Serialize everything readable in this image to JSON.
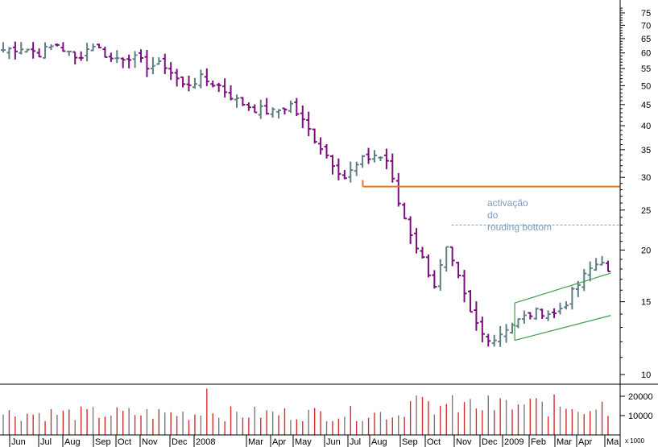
{
  "chart_data": {
    "type": "ohlc",
    "price_scale": "log",
    "y_ticks": [
      10,
      15,
      20,
      25,
      30,
      35,
      40,
      45,
      50,
      55,
      60,
      65,
      70,
      75
    ],
    "ylim": [
      9.5,
      78
    ],
    "volume_ticks": [
      {
        "value": 10000,
        "label": "10000"
      },
      {
        "value": 20000,
        "label": "20000"
      }
    ],
    "volume_unit_label": "x 1000",
    "x_labels": [
      "Jun",
      "Jul",
      "Aug",
      "Sep",
      "Oct",
      "Nov",
      "Dec",
      "2008",
      "Mar",
      "Apr",
      "May",
      "Jun",
      "Jul",
      "Aug",
      "Sep",
      "Oct",
      "Nov",
      "Dec",
      "2009",
      "Feb",
      "Mar",
      "Apr",
      "Ma"
    ],
    "colors": {
      "up": "#5e7f86",
      "down": "#7b0f7b",
      "volume": "#d23030",
      "volume_alt": "#7a7a7a",
      "level": "#f07020",
      "dashed": "#7aa0c0",
      "channel": "#3aa048",
      "annotation": "#7a9cc0"
    },
    "close_path": [
      [
        0,
        61
      ],
      [
        3,
        62
      ],
      [
        6,
        60
      ],
      [
        9,
        63
      ],
      [
        12,
        58
      ],
      [
        15,
        63
      ],
      [
        18,
        58
      ],
      [
        21,
        59
      ],
      [
        24,
        56
      ],
      [
        27,
        56
      ],
      [
        30,
        50
      ],
      [
        33,
        52
      ],
      [
        36,
        50
      ],
      [
        39,
        46
      ],
      [
        42,
        44
      ],
      [
        45,
        43
      ],
      [
        48,
        45
      ],
      [
        51,
        39
      ],
      [
        54,
        34
      ],
      [
        57,
        30
      ],
      [
        60,
        33
      ],
      [
        62,
        34
      ],
      [
        64,
        33
      ],
      [
        66,
        26
      ],
      [
        68,
        22
      ],
      [
        70,
        19
      ],
      [
        72,
        16.5
      ],
      [
        74,
        20
      ],
      [
        76,
        17
      ],
      [
        78,
        14
      ],
      [
        80,
        12.5
      ],
      [
        82,
        12.2
      ],
      [
        84,
        13
      ],
      [
        86,
        13.5
      ],
      [
        88,
        14
      ],
      [
        90,
        14.2
      ],
      [
        92,
        14
      ],
      [
        94,
        15
      ],
      [
        96,
        16.5
      ],
      [
        98,
        18
      ],
      [
        100,
        19
      ],
      [
        101,
        17.5
      ]
    ],
    "levels": [
      {
        "name": "support-line",
        "value": 28.5,
        "x_start": 0.585,
        "x_end": 1.0,
        "style": "solid"
      },
      {
        "name": "activation-line",
        "value": 23,
        "x_start": 0.728,
        "x_end": 1.0,
        "style": "dashed"
      }
    ],
    "channel": [
      {
        "x1": 0.83,
        "y1": 14.9,
        "x2": 0.985,
        "y2": 17.6
      },
      {
        "x1": 0.83,
        "y1": 12.1,
        "x2": 0.985,
        "y2": 13.9
      }
    ],
    "annotation": [
      "activação",
      "do",
      "rouding bottom"
    ]
  }
}
